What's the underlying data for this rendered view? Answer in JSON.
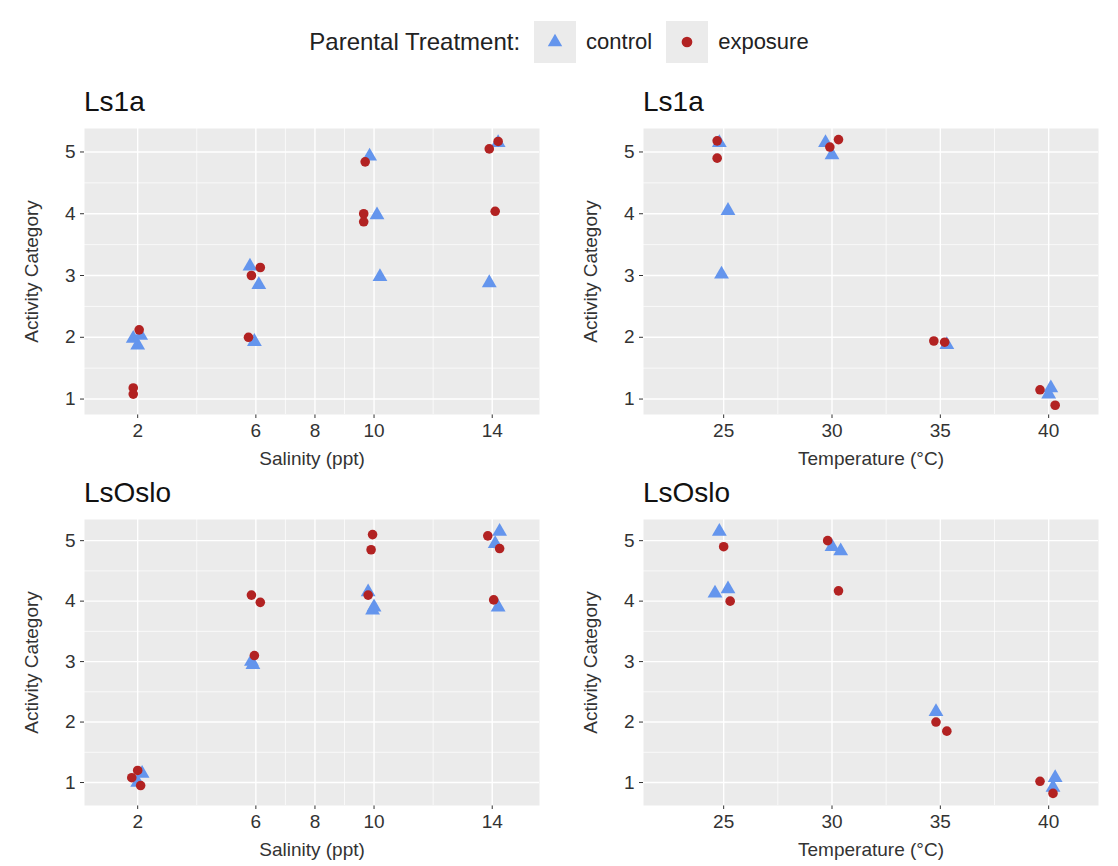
{
  "legend_title": "Parental Treatment:",
  "chart_data": [
    {
      "type": "scatter",
      "title": "Ls1a",
      "x_label": "Salinity (ppt)",
      "y_label": "Activity Category",
      "xlim": [
        0.2,
        15.6
      ],
      "xticks": [
        2,
        6,
        8,
        10,
        14
      ],
      "ylim": [
        0.75,
        5.38
      ],
      "yticks": [
        1,
        2,
        3,
        4,
        5
      ],
      "grid": true,
      "legend": "top",
      "series": [
        {
          "name": "control",
          "color": "#6495ED",
          "marker": "triangle",
          "x": [
            1.85,
            2.0,
            2.1,
            5.8,
            5.95,
            6.1,
            9.85,
            10.1,
            10.2,
            14.2,
            13.9
          ],
          "values": [
            1.98,
            1.87,
            2.03,
            3.15,
            1.93,
            2.85,
            4.93,
            3.98,
            2.98,
            5.15,
            2.88
          ]
        },
        {
          "name": "exposure",
          "color": "#B22222",
          "marker": "circle",
          "x": [
            2.05,
            1.85,
            1.85,
            5.85,
            6.15,
            5.75,
            9.7,
            9.65,
            9.65,
            13.9,
            14.2,
            14.1
          ],
          "values": [
            2.12,
            1.18,
            1.08,
            3.0,
            3.13,
            2.0,
            4.84,
            4.0,
            3.87,
            5.05,
            5.17,
            4.04
          ]
        }
      ]
    },
    {
      "type": "scatter",
      "title": "Ls1a",
      "x_label": "Temperature (°C)",
      "y_label": "Activity Category",
      "xlim": [
        21.3,
        42.3
      ],
      "xticks": [
        25,
        30,
        35,
        40
      ],
      "ylim": [
        0.75,
        5.38
      ],
      "yticks": [
        1,
        2,
        3,
        4,
        5
      ],
      "grid": true,
      "legend": "top",
      "series": [
        {
          "name": "control",
          "color": "#6495ED",
          "marker": "triangle",
          "x": [
            24.8,
            25.2,
            24.9,
            29.7,
            30.0,
            35.3,
            40.1,
            40.0
          ],
          "values": [
            5.15,
            4.05,
            3.02,
            5.15,
            4.95,
            1.88,
            1.18,
            1.08
          ]
        },
        {
          "name": "exposure",
          "color": "#B22222",
          "marker": "circle",
          "x": [
            24.7,
            24.7,
            29.9,
            30.3,
            34.7,
            35.2,
            39.6,
            40.3
          ],
          "values": [
            5.18,
            4.9,
            5.08,
            5.2,
            1.94,
            1.92,
            1.15,
            0.9
          ]
        }
      ]
    },
    {
      "type": "scatter",
      "title": "LsOslo",
      "x_label": "Salinity (ppt)",
      "y_label": "Activity Category",
      "xlim": [
        0.2,
        15.6
      ],
      "xticks": [
        2,
        6,
        8,
        10,
        14
      ],
      "ylim": [
        0.62,
        5.35
      ],
      "yticks": [
        1,
        2,
        3,
        4,
        5
      ],
      "grid": true,
      "legend": "top",
      "series": [
        {
          "name": "control",
          "color": "#6495ED",
          "marker": "triangle",
          "x": [
            2.0,
            2.15,
            5.85,
            5.9,
            9.8,
            10.0,
            9.95,
            14.25,
            14.2,
            14.1
          ],
          "values": [
            1.0,
            1.15,
            3.0,
            2.95,
            4.15,
            3.9,
            3.85,
            5.15,
            3.9,
            4.95
          ]
        },
        {
          "name": "exposure",
          "color": "#B22222",
          "marker": "circle",
          "x": [
            1.8,
            2.0,
            2.1,
            5.85,
            6.15,
            5.95,
            9.95,
            9.9,
            9.8,
            13.85,
            14.25,
            14.05
          ],
          "values": [
            1.08,
            1.2,
            0.95,
            4.1,
            3.98,
            3.1,
            5.1,
            4.85,
            4.1,
            5.08,
            4.87,
            4.02
          ]
        }
      ]
    },
    {
      "type": "scatter",
      "title": "LsOslo",
      "x_label": "Temperature (°C)",
      "y_label": "Activity Category",
      "xlim": [
        21.3,
        42.3
      ],
      "xticks": [
        25,
        30,
        35,
        40
      ],
      "ylim": [
        0.62,
        5.35
      ],
      "yticks": [
        1,
        2,
        3,
        4,
        5
      ],
      "grid": true,
      "legend": "top",
      "series": [
        {
          "name": "control",
          "color": "#6495ED",
          "marker": "triangle",
          "x": [
            24.8,
            24.6,
            25.2,
            30.0,
            30.4,
            34.8,
            40.3,
            40.2
          ],
          "values": [
            5.15,
            4.13,
            4.2,
            4.9,
            4.83,
            2.17,
            1.08,
            0.92
          ]
        },
        {
          "name": "exposure",
          "color": "#B22222",
          "marker": "circle",
          "x": [
            25.0,
            25.3,
            29.8,
            30.3,
            34.8,
            35.3,
            39.6,
            40.2
          ],
          "values": [
            4.9,
            4.0,
            5.0,
            4.17,
            2.0,
            1.85,
            1.02,
            0.82
          ]
        }
      ]
    }
  ]
}
